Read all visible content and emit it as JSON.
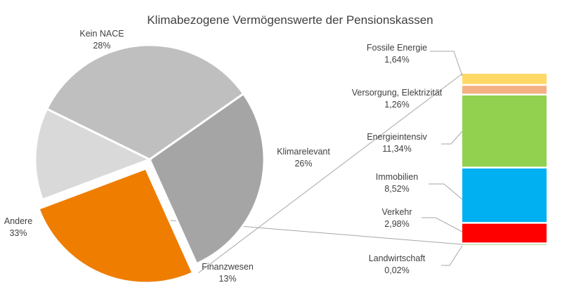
{
  "chart_data": {
    "type": "pie",
    "title": "Klimabezogene Vermögenswerte der Pensionskassen",
    "slices": [
      {
        "name": "Kein NACE",
        "value": 28,
        "label": "28%",
        "color": "#a5a5a5"
      },
      {
        "name": "Klimarelevant",
        "value": 26,
        "label": "26%",
        "color": "#ee7d00",
        "exploded": true
      },
      {
        "name": "Finanzwesen",
        "value": 13,
        "label": "13%",
        "color": "#d9d9d9"
      },
      {
        "name": "Andere",
        "value": 33,
        "label": "33%",
        "color": "#bfbfbf"
      }
    ],
    "breakdown": {
      "of": "Klimarelevant",
      "type": "stacked-bar",
      "segments": [
        {
          "name": "Fossile Energie",
          "value": 1.64,
          "label": "1,64%",
          "color": "#ffd966"
        },
        {
          "name": "Versorgung, Elektrizität",
          "value": 1.26,
          "label": "1,26%",
          "color": "#f4b183"
        },
        {
          "name": "Energieintensiv",
          "value": 11.34,
          "label": "11,34%",
          "color": "#92d050"
        },
        {
          "name": "Immobilien",
          "value": 8.52,
          "label": "8,52%",
          "color": "#00b0f0"
        },
        {
          "name": "Verkehr",
          "value": 2.98,
          "label": "2,98%",
          "color": "#ff0000"
        },
        {
          "name": "Landwirtschaft",
          "value": 0.02,
          "label": "0,02%",
          "color": "#70ad47"
        }
      ]
    },
    "legend": "none"
  }
}
